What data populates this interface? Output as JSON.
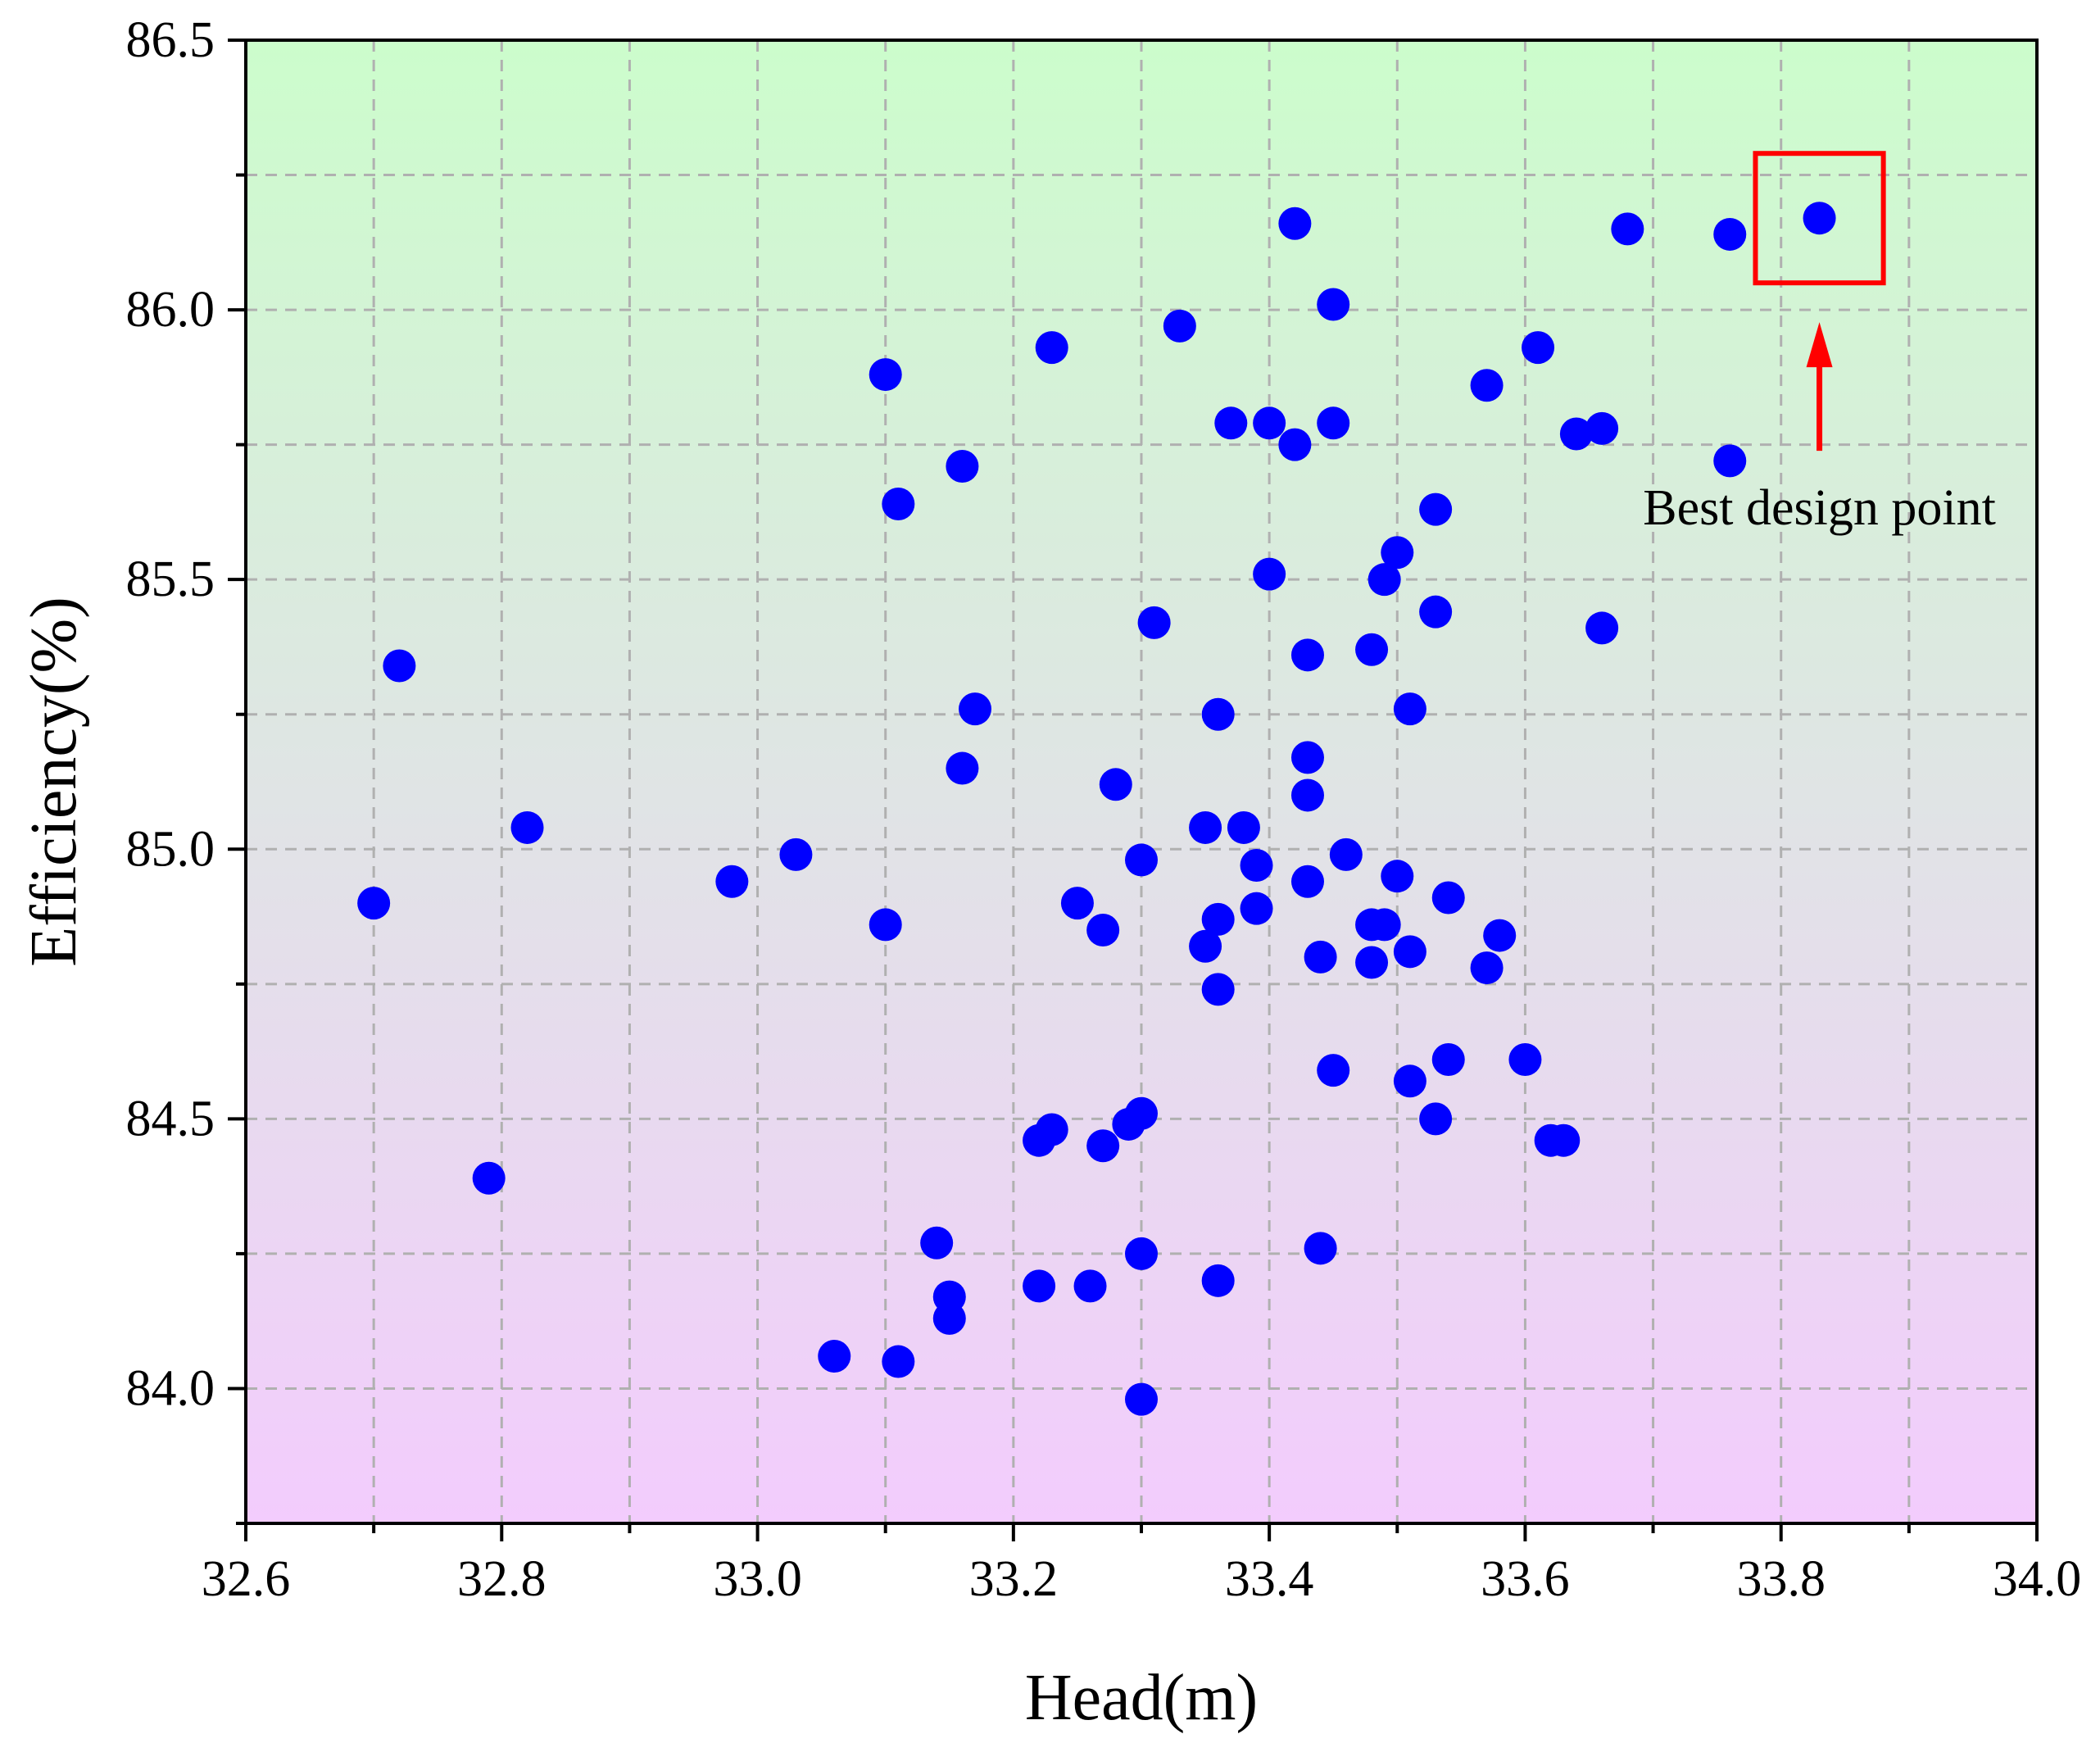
{
  "chart_data": {
    "type": "scatter",
    "title": "",
    "xlabel": "Head(m)",
    "ylabel": "Efficiency(%)",
    "xlim": [
      32.6,
      34.0
    ],
    "ylim": [
      83.75,
      86.5
    ],
    "xticks": [
      "32.6",
      "32.8",
      "33.0",
      "33.2",
      "33.4",
      "33.6",
      "33.8",
      "34.0"
    ],
    "yticks": [
      "84.0",
      "84.5",
      "85.0",
      "85.5",
      "86.0",
      "86.5"
    ],
    "grid": true,
    "background": {
      "top": "#ccfdcc",
      "bottom": "#f3ccfd"
    },
    "point_color": "#0000ff",
    "points": [
      [
        32.7,
        84.9
      ],
      [
        32.72,
        85.34
      ],
      [
        32.79,
        84.39
      ],
      [
        32.82,
        85.04
      ],
      [
        32.98,
        84.94
      ],
      [
        33.03,
        84.99
      ],
      [
        33.06,
        84.06
      ],
      [
        33.1,
        85.88
      ],
      [
        33.1,
        84.86
      ],
      [
        33.11,
        85.64
      ],
      [
        33.11,
        84.05
      ],
      [
        33.14,
        84.27
      ],
      [
        33.15,
        84.17
      ],
      [
        33.15,
        84.13
      ],
      [
        33.16,
        85.71
      ],
      [
        33.16,
        85.15
      ],
      [
        33.17,
        85.26
      ],
      [
        33.22,
        84.46
      ],
      [
        33.22,
        84.19
      ],
      [
        33.23,
        85.93
      ],
      [
        33.23,
        84.48
      ],
      [
        33.25,
        84.9
      ],
      [
        33.26,
        84.19
      ],
      [
        33.27,
        84.45
      ],
      [
        33.27,
        84.85
      ],
      [
        33.28,
        85.12
      ],
      [
        33.29,
        84.49
      ],
      [
        33.3,
        84.25
      ],
      [
        33.3,
        83.98
      ],
      [
        33.3,
        84.98
      ],
      [
        33.3,
        84.51
      ],
      [
        33.31,
        85.42
      ],
      [
        33.33,
        85.97
      ],
      [
        33.35,
        84.82
      ],
      [
        33.35,
        85.04
      ],
      [
        33.36,
        84.2
      ],
      [
        33.36,
        84.74
      ],
      [
        33.36,
        84.87
      ],
      [
        33.36,
        85.25
      ],
      [
        33.37,
        85.79
      ],
      [
        33.38,
        85.04
      ],
      [
        33.39,
        84.97
      ],
      [
        33.39,
        84.89
      ],
      [
        33.4,
        85.79
      ],
      [
        33.4,
        85.51
      ],
      [
        33.42,
        85.75
      ],
      [
        33.42,
        86.16
      ],
      [
        33.43,
        85.36
      ],
      [
        33.43,
        85.1
      ],
      [
        33.43,
        84.94
      ],
      [
        33.43,
        85.17
      ],
      [
        33.44,
        84.8
      ],
      [
        33.44,
        84.26
      ],
      [
        33.45,
        84.59
      ],
      [
        33.45,
        86.01
      ],
      [
        33.45,
        85.79
      ],
      [
        33.46,
        84.99
      ],
      [
        33.48,
        84.86
      ],
      [
        33.48,
        84.79
      ],
      [
        33.48,
        85.37
      ],
      [
        33.49,
        84.86
      ],
      [
        33.49,
        85.5
      ],
      [
        33.5,
        85.55
      ],
      [
        33.5,
        84.95
      ],
      [
        33.51,
        84.81
      ],
      [
        33.51,
        85.26
      ],
      [
        33.51,
        84.57
      ],
      [
        33.53,
        85.63
      ],
      [
        33.53,
        85.44
      ],
      [
        33.53,
        84.5
      ],
      [
        33.54,
        84.91
      ],
      [
        33.54,
        84.61
      ],
      [
        33.57,
        85.86
      ],
      [
        33.57,
        84.78
      ],
      [
        33.58,
        84.84
      ],
      [
        33.6,
        84.61
      ],
      [
        33.61,
        85.93
      ],
      [
        33.62,
        84.46
      ],
      [
        33.63,
        84.46
      ],
      [
        33.64,
        85.77
      ],
      [
        33.66,
        85.78
      ],
      [
        33.66,
        85.41
      ],
      [
        33.68,
        86.15
      ],
      [
        33.76,
        85.72
      ],
      [
        33.76,
        86.14
      ],
      [
        33.83,
        86.17
      ]
    ],
    "annotations": [
      {
        "text": "Best design point",
        "target": [
          33.83,
          86.17
        ],
        "box": {
          "x": [
            33.78,
            33.88
          ],
          "y": [
            86.05,
            86.29
          ]
        },
        "color": "#ff0000"
      }
    ]
  }
}
